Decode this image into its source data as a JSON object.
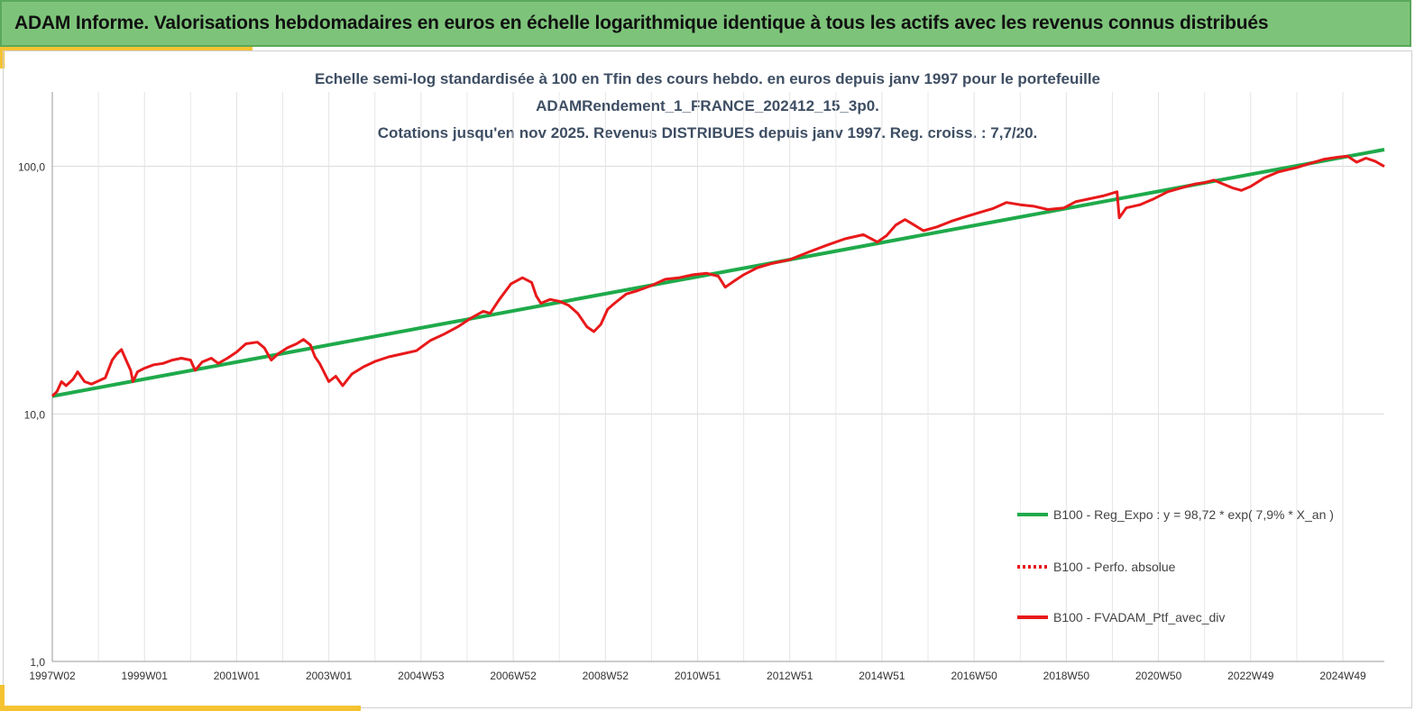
{
  "header": {
    "title": "ADAM Informe. Valorisations hebdomadaires en euros en échelle logarithmique identique à tous les actifs avec les revenus connus distribués"
  },
  "chart_data": {
    "type": "line",
    "title_lines": [
      "Echelle semi-log standardisée  à 100 en Tfin des cours hebdo.  en euros depuis janv 1997 pour le portefeuille",
      "ADAMRendement_1_FRANCE_202412_15_3p0.",
      "Cotations  jusqu'en  nov 2025. Revenus DISTRIBUES depuis janv 1997. Reg. croiss. : 7,7/20."
    ],
    "y_scale": "log",
    "ylim": [
      1,
      200
    ],
    "y_ticks": [
      1,
      10,
      100
    ],
    "y_tick_labels": [
      "1,0",
      "10,0",
      "100,0"
    ],
    "xlim": [
      1997.0,
      2025.9
    ],
    "x_ticks": [
      {
        "t": 1997.0,
        "label": "1997W02"
      },
      {
        "t": 1999.0,
        "label": "1999W01"
      },
      {
        "t": 2001.0,
        "label": "2001W01"
      },
      {
        "t": 2003.0,
        "label": "2003W01"
      },
      {
        "t": 2005.0,
        "label": "2004W53"
      },
      {
        "t": 2007.0,
        "label": "2006W52"
      },
      {
        "t": 2009.0,
        "label": "2008W52"
      },
      {
        "t": 2011.0,
        "label": "2010W51"
      },
      {
        "t": 2013.0,
        "label": "2012W51"
      },
      {
        "t": 2015.0,
        "label": "2014W51"
      },
      {
        "t": 2017.0,
        "label": "2016W50"
      },
      {
        "t": 2019.0,
        "label": "2018W50"
      },
      {
        "t": 2021.0,
        "label": "2020W50"
      },
      {
        "t": 2023.0,
        "label": "2022W49"
      },
      {
        "t": 2025.0,
        "label": "2024W49"
      }
    ],
    "x_minor_ticks": [
      1998.0,
      2000.0,
      2002.0,
      2004.0,
      2006.0,
      2008.0,
      2010.0,
      2012.0,
      2014.0,
      2016.0,
      2018.0,
      2020.0,
      2022.0,
      2024.0
    ],
    "grid": true,
    "legend_position": "right",
    "series": [
      {
        "name": "B100 - Reg_Expo : y = 98,72 * exp( 7,9% *  X_an )",
        "color": "#1faa4b",
        "style": "solid",
        "x": [
          1997.0,
          2025.9
        ],
        "y": [
          11.8,
          117
        ]
      },
      {
        "name": "B100 - Perfo. absolue",
        "color": "#e8191a",
        "style": "dotted",
        "x": [],
        "y": []
      },
      {
        "name": "B100 - FVADAM_Ptf_avec_div",
        "color": "#e8191a",
        "style": "solid",
        "x": [
          1997.0,
          1997.1,
          1997.2,
          1997.3,
          1997.45,
          1997.55,
          1997.7,
          1997.85,
          1998.0,
          1998.15,
          1998.3,
          1998.4,
          1998.5,
          1998.6,
          1998.7,
          1998.75,
          1998.85,
          1999.0,
          1999.2,
          1999.4,
          1999.6,
          1999.8,
          2000.0,
          2000.1,
          2000.25,
          2000.45,
          2000.6,
          2000.8,
          2001.0,
          2001.2,
          2001.45,
          2001.6,
          2001.75,
          2001.9,
          2002.1,
          2002.3,
          2002.45,
          2002.6,
          2002.7,
          2002.8,
          2003.0,
          2003.15,
          2003.3,
          2003.5,
          2003.75,
          2004.0,
          2004.3,
          2004.6,
          2004.9,
          2005.2,
          2005.5,
          2005.8,
          2006.1,
          2006.35,
          2006.5,
          2006.7,
          2006.95,
          2007.2,
          2007.4,
          2007.5,
          2007.6,
          2007.8,
          2008.0,
          2008.2,
          2008.4,
          2008.6,
          2008.75,
          2008.9,
          2009.05,
          2009.2,
          2009.45,
          2009.7,
          2010.0,
          2010.3,
          2010.6,
          2010.9,
          2011.2,
          2011.45,
          2011.6,
          2011.8,
          2012.0,
          2012.3,
          2012.6,
          2013.0,
          2013.4,
          2013.8,
          2014.2,
          2014.6,
          2014.9,
          2015.1,
          2015.3,
          2015.5,
          2015.7,
          2015.9,
          2016.2,
          2016.5,
          2016.8,
          2017.1,
          2017.4,
          2017.7,
          2018.0,
          2018.3,
          2018.6,
          2018.95,
          2019.2,
          2019.5,
          2019.8,
          2020.1,
          2020.15,
          2020.3,
          2020.6,
          2020.9,
          2021.2,
          2021.5,
          2021.8,
          2022.0,
          2022.2,
          2022.4,
          2022.6,
          2022.8,
          2023.0,
          2023.3,
          2023.6,
          2023.8,
          2024.0,
          2024.3,
          2024.6,
          2024.9,
          2025.1,
          2025.3,
          2025.5,
          2025.7,
          2025.9
        ],
        "y": [
          11.8,
          12.3,
          13.5,
          13.0,
          13.8,
          14.8,
          13.5,
          13.2,
          13.6,
          14.0,
          16.5,
          17.5,
          18.2,
          16.5,
          15.0,
          13.5,
          14.8,
          15.3,
          15.8,
          16.0,
          16.5,
          16.8,
          16.5,
          15.0,
          16.2,
          16.8,
          16.0,
          16.8,
          17.8,
          19.2,
          19.5,
          18.5,
          16.5,
          17.5,
          18.5,
          19.2,
          20.0,
          19.0,
          17.0,
          16.0,
          13.5,
          14.2,
          13.0,
          14.5,
          15.5,
          16.3,
          17.0,
          17.5,
          18.0,
          19.8,
          21.0,
          22.5,
          24.5,
          26.0,
          25.5,
          29.0,
          33.5,
          35.5,
          34.0,
          30.0,
          28.0,
          29.0,
          28.5,
          27.5,
          25.5,
          22.5,
          21.5,
          23.0,
          26.5,
          28.0,
          30.5,
          31.5,
          33.0,
          35.0,
          35.5,
          36.5,
          37.0,
          36.0,
          32.5,
          34.5,
          36.5,
          39.0,
          40.5,
          42.0,
          45.0,
          48.0,
          51.0,
          53.0,
          49.5,
          52.5,
          58.0,
          61.0,
          58.0,
          55.0,
          57.0,
          60.0,
          62.5,
          65.0,
          67.5,
          71.5,
          70.0,
          69.0,
          67.0,
          68.0,
          72.0,
          74.0,
          76.0,
          79.0,
          62.0,
          68.0,
          70.0,
          74.0,
          79.0,
          82.0,
          85.0,
          86.0,
          88.0,
          85.0,
          82.0,
          80.0,
          83.0,
          90.0,
          95.0,
          97.0,
          99.0,
          103.0,
          107.0,
          109.0,
          110.0,
          104.0,
          108.0,
          105.0,
          100.0
        ]
      }
    ]
  }
}
